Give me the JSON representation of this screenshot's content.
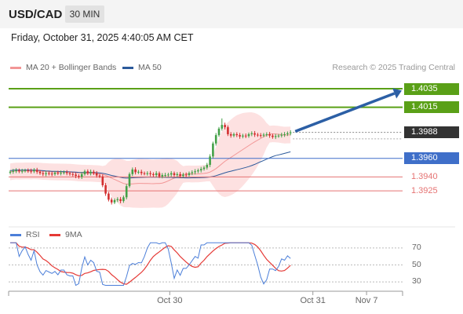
{
  "header": {
    "symbol": "USD/CAD",
    "timeframe": "30 MIN",
    "datetime": "Friday, October 31, 2025 4:40:05 AM CET"
  },
  "legend": {
    "ma20_label": "MA 20 + Bollinger Bands",
    "ma20_color": "#f29696",
    "ma50_label": "MA 50",
    "ma50_color": "#2c5a9b"
  },
  "source": "Research © 2025 Trading Central",
  "colors": {
    "up_candle": "#43a047",
    "down_candle": "#d32f2f",
    "bollinger_fill": "#fde1e1",
    "resistance": "#5aa017",
    "current": "#333333",
    "pivot": "#3f6fc9",
    "support": "#e57373",
    "arrow": "#2c5fa5",
    "rsi_line": "#4c7fd9",
    "rsi_ma": "#e53935"
  },
  "chart_data": {
    "type": "candlestick",
    "price_axis": {
      "ylim": [
        1.3898,
        1.4046
      ]
    },
    "levels": [
      {
        "label": "1.4035",
        "value": 1.4035,
        "kind": "resistance"
      },
      {
        "label": "1.4015",
        "value": 1.4015,
        "kind": "resistance"
      },
      {
        "label": "1.3988",
        "value": 1.3988,
        "kind": "current"
      },
      {
        "label": "1.3960",
        "value": 1.396,
        "kind": "pivot"
      },
      {
        "label": "1.3940",
        "value": 1.394,
        "kind": "support"
      },
      {
        "label": "1.3925",
        "value": 1.3925,
        "kind": "support"
      }
    ],
    "forecast": {
      "from": 1.3989,
      "to": 1.4033
    },
    "close": [
      1.39455,
      1.39465,
      1.3947,
      1.3946,
      1.39465,
      1.3947,
      1.39465,
      1.3946,
      1.39475,
      1.39455,
      1.3944,
      1.3943,
      1.3944,
      1.39435,
      1.3943,
      1.39445,
      1.3944,
      1.39445,
      1.3945,
      1.3944,
      1.3943,
      1.39425,
      1.3941,
      1.394,
      1.3943,
      1.3946,
      1.3944,
      1.39455,
      1.3944,
      1.39415,
      1.39405,
      1.3931,
      1.3922,
      1.39155,
      1.39125,
      1.3915,
      1.3916,
      1.3914,
      1.3918,
      1.393,
      1.3943,
      1.3948,
      1.3945,
      1.39455,
      1.3944,
      1.39435,
      1.3944,
      1.3943,
      1.3942,
      1.3944,
      1.39405,
      1.3942,
      1.3942,
      1.39425,
      1.3944,
      1.3942,
      1.3943,
      1.3941,
      1.39425,
      1.3942,
      1.3944,
      1.3945,
      1.3946,
      1.3947,
      1.39485,
      1.395,
      1.3953,
      1.3962,
      1.3976,
      1.3985,
      1.3992,
      1.3996,
      1.39935,
      1.3986,
      1.39845,
      1.3986,
      1.3985,
      1.39835,
      1.39845,
      1.3984,
      1.3986,
      1.3987,
      1.39855,
      1.3985,
      1.39845,
      1.39855,
      1.3986,
      1.39845,
      1.3983,
      1.3984,
      1.39845,
      1.39855,
      1.3986,
      1.3987,
      1.3988
    ],
    "x_ticks": [
      {
        "label": "Oct 30",
        "index": 53.5
      },
      {
        "label": "Oct 31",
        "index": 101.5
      },
      {
        "label": "Nov 7",
        "index": 119.5
      }
    ],
    "rsi": {
      "legend_rsi": "RSI",
      "legend_ma": "9MA",
      "ylim": [
        20,
        80
      ],
      "ticks": [
        70,
        50,
        30
      ],
      "levels": [
        70,
        50,
        30
      ]
    }
  }
}
